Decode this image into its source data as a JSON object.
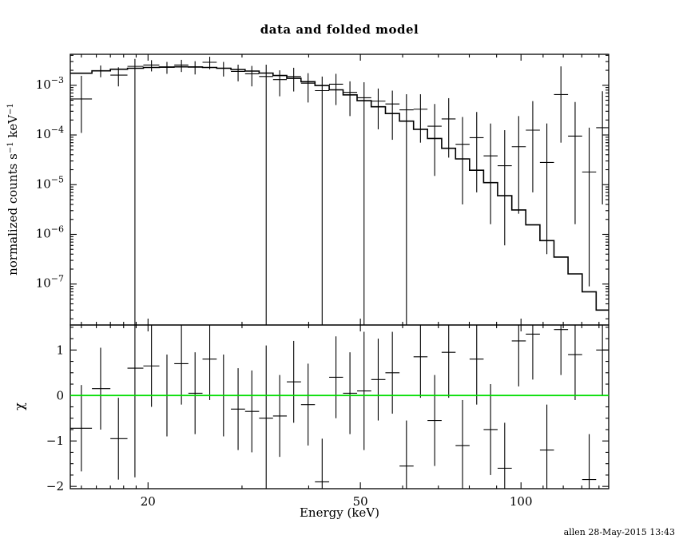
{
  "title": "data and folded model",
  "xlabel": "Energy (keV)",
  "timestamp": "allen 28-May-2015 13:43",
  "colors": {
    "background": "#ffffff",
    "ink": "#000000",
    "zero_line": "#00dd00"
  },
  "chart_data": [
    {
      "type": "scatter",
      "panel": "spectrum",
      "title": "data and folded model",
      "xlabel": "Energy (keV)",
      "ylabel_parts": {
        "prefix": "normalized counts s",
        "sup1": "−1",
        "mid": " keV",
        "sup2": "−1"
      },
      "xscale": "log",
      "yscale": "log",
      "xlim": [
        14.3,
        146
      ],
      "ylim": [
        1.5e-08,
        0.0042
      ],
      "x_major_ticks": [
        20,
        50,
        100
      ],
      "x_minor_ticks": [
        15,
        16,
        17,
        18,
        19,
        30,
        40,
        60,
        70,
        80,
        90,
        110,
        120,
        130,
        140
      ],
      "y_major_exponents": [
        -3,
        -4,
        -5,
        -6,
        -7
      ],
      "bin_edges": [
        14.3,
        15.7,
        17.0,
        18.3,
        19.6,
        21.0,
        22.4,
        23.8,
        25.3,
        26.9,
        28.6,
        30.4,
        32.3,
        34.3,
        36.4,
        38.7,
        41.1,
        43.7,
        46.4,
        49.3,
        52.4,
        55.7,
        59.2,
        62.9,
        66.8,
        71.0,
        75.4,
        80.1,
        85.1,
        90.4,
        96.1,
        102.1,
        108.5,
        115.3,
        122.5,
        130.2,
        138.3,
        146.0
      ],
      "model_values": [
        0.00175,
        0.00195,
        0.0021,
        0.0022,
        0.00228,
        0.00233,
        0.00235,
        0.00233,
        0.00228,
        0.0022,
        0.00208,
        0.00193,
        0.00176,
        0.00157,
        0.00138,
        0.00118,
        0.00099,
        0.00081,
        0.00064,
        0.00049,
        0.00037,
        0.00027,
        0.00019,
        0.00013,
        8.5e-05,
        5.4e-05,
        3.3e-05,
        1.95e-05,
        1.1e-05,
        6e-06,
        3.1e-06,
        1.55e-06,
        7.5e-07,
        3.5e-07,
        1.6e-07,
        7e-08,
        3e-08
      ],
      "points": [
        {
          "x": 15.0,
          "xlo": 14.3,
          "xhi": 15.7,
          "y": 0.00053,
          "ylo": 0.00011,
          "yhi": 0.00155
        },
        {
          "x": 16.3,
          "xlo": 15.7,
          "xhi": 17.0,
          "y": 0.00195,
          "ylo": 0.00145,
          "yhi": 0.0025
        },
        {
          "x": 17.6,
          "xlo": 17.0,
          "xhi": 18.3,
          "y": 0.0016,
          "ylo": 0.00095,
          "yhi": 0.0023
        },
        {
          "x": 18.9,
          "xlo": 18.3,
          "xhi": 19.6,
          "y": 0.0024,
          "ylo": 1e-09,
          "yhi": 0.0034
        },
        {
          "x": 20.3,
          "xlo": 19.6,
          "xhi": 21.0,
          "y": 0.00255,
          "ylo": 0.0019,
          "yhi": 0.0032
        },
        {
          "x": 21.7,
          "xlo": 21.0,
          "xhi": 22.4,
          "y": 0.0023,
          "ylo": 0.0017,
          "yhi": 0.00295
        },
        {
          "x": 23.1,
          "xlo": 22.4,
          "xhi": 23.8,
          "y": 0.00255,
          "ylo": 0.00185,
          "yhi": 0.00325
        },
        {
          "x": 24.5,
          "xlo": 23.8,
          "xhi": 25.3,
          "y": 0.00235,
          "ylo": 0.00165,
          "yhi": 0.00305
        },
        {
          "x": 26.1,
          "xlo": 25.3,
          "xhi": 26.9,
          "y": 0.0029,
          "ylo": 0.0021,
          "yhi": 0.00375
        },
        {
          "x": 27.7,
          "xlo": 26.9,
          "xhi": 28.6,
          "y": 0.0022,
          "ylo": 0.0015,
          "yhi": 0.00295
        },
        {
          "x": 29.5,
          "xlo": 28.6,
          "xhi": 30.4,
          "y": 0.0019,
          "ylo": 0.0012,
          "yhi": 0.0026
        },
        {
          "x": 31.3,
          "xlo": 30.4,
          "xhi": 32.3,
          "y": 0.0017,
          "ylo": 0.00095,
          "yhi": 0.00245
        },
        {
          "x": 33.3,
          "xlo": 32.3,
          "xhi": 34.3,
          "y": 0.0015,
          "ylo": 1e-09,
          "yhi": 0.0026
        },
        {
          "x": 35.3,
          "xlo": 34.3,
          "xhi": 36.4,
          "y": 0.0013,
          "ylo": 0.0006,
          "yhi": 0.002
        },
        {
          "x": 37.5,
          "xlo": 36.4,
          "xhi": 38.7,
          "y": 0.0015,
          "ylo": 0.00075,
          "yhi": 0.00225
        },
        {
          "x": 39.9,
          "xlo": 38.7,
          "xhi": 41.1,
          "y": 0.0011,
          "ylo": 0.00045,
          "yhi": 0.00175
        },
        {
          "x": 42.4,
          "xlo": 41.1,
          "xhi": 43.7,
          "y": 0.00078,
          "ylo": 1e-09,
          "yhi": 0.0015
        },
        {
          "x": 45.0,
          "xlo": 43.7,
          "xhi": 46.4,
          "y": 0.00105,
          "ylo": 0.0004,
          "yhi": 0.0017
        },
        {
          "x": 47.8,
          "xlo": 46.4,
          "xhi": 49.3,
          "y": 0.00072,
          "ylo": 0.00024,
          "yhi": 0.0012
        },
        {
          "x": 50.8,
          "xlo": 49.3,
          "xhi": 52.4,
          "y": 0.00056,
          "ylo": 1e-09,
          "yhi": 0.00115
        },
        {
          "x": 54.0,
          "xlo": 52.4,
          "xhi": 55.7,
          "y": 0.00048,
          "ylo": 0.00013,
          "yhi": 0.00086
        },
        {
          "x": 57.4,
          "xlo": 55.7,
          "xhi": 59.2,
          "y": 0.00042,
          "ylo": 8e-05,
          "yhi": 0.00078
        },
        {
          "x": 61.0,
          "xlo": 59.2,
          "xhi": 62.9,
          "y": 0.00032,
          "ylo": 1e-09,
          "yhi": 0.00066
        },
        {
          "x": 64.8,
          "xlo": 62.9,
          "xhi": 66.8,
          "y": 0.00033,
          "ylo": 7e-05,
          "yhi": 0.00066
        },
        {
          "x": 68.9,
          "xlo": 66.8,
          "xhi": 71.0,
          "y": 0.00015,
          "ylo": 1.5e-05,
          "yhi": 0.00042
        },
        {
          "x": 73.2,
          "xlo": 71.0,
          "xhi": 75.4,
          "y": 0.00021,
          "ylo": 3.5e-05,
          "yhi": 0.00055
        },
        {
          "x": 77.7,
          "xlo": 75.4,
          "xhi": 80.1,
          "y": 6.5e-05,
          "ylo": 4e-06,
          "yhi": 0.00023
        },
        {
          "x": 82.6,
          "xlo": 80.1,
          "xhi": 85.1,
          "y": 8.8e-05,
          "ylo": 7e-06,
          "yhi": 0.00029
        },
        {
          "x": 87.7,
          "xlo": 85.1,
          "xhi": 90.4,
          "y": 3.8e-05,
          "ylo": 1.6e-06,
          "yhi": 0.00017
        },
        {
          "x": 93.2,
          "xlo": 90.4,
          "xhi": 96.1,
          "y": 2.4e-05,
          "ylo": 6e-07,
          "yhi": 0.000125
        },
        {
          "x": 99.0,
          "xlo": 96.1,
          "xhi": 102.1,
          "y": 5.8e-05,
          "ylo": 2.6e-06,
          "yhi": 0.00024
        },
        {
          "x": 105.2,
          "xlo": 102.1,
          "xhi": 108.5,
          "y": 0.000125,
          "ylo": 7e-06,
          "yhi": 0.00048
        },
        {
          "x": 111.8,
          "xlo": 108.5,
          "xhi": 115.3,
          "y": 2.8e-05,
          "ylo": 4e-07,
          "yhi": 0.00017
        },
        {
          "x": 118.8,
          "xlo": 115.3,
          "xhi": 122.5,
          "y": 0.00065,
          "ylo": 7e-05,
          "yhi": 0.0024
        },
        {
          "x": 126.3,
          "xlo": 122.5,
          "xhi": 130.2,
          "y": 9.5e-05,
          "ylo": 1.6e-06,
          "yhi": 0.00046
        },
        {
          "x": 134.2,
          "xlo": 130.2,
          "xhi": 138.3,
          "y": 1.8e-05,
          "ylo": 9e-08,
          "yhi": 0.00014
        },
        {
          "x": 142.1,
          "xlo": 138.3,
          "xhi": 146.0,
          "y": 0.00014,
          "ylo": 4e-06,
          "yhi": 0.00076
        }
      ]
    },
    {
      "type": "scatter",
      "panel": "residuals",
      "ylabel": "χ",
      "xlim": [
        14.3,
        146
      ],
      "ylim": [
        -2.05,
        1.55
      ],
      "y_ticks": [
        -2,
        -1,
        0,
        1
      ],
      "zero_line": {
        "y": 0,
        "color": "#00dd00"
      },
      "points": [
        {
          "x": 15.0,
          "xlo": 14.3,
          "xhi": 15.7,
          "y": -0.72,
          "err": 0.95
        },
        {
          "x": 16.3,
          "xlo": 15.7,
          "xhi": 17.0,
          "y": 0.15,
          "err": 0.9
        },
        {
          "x": 17.6,
          "xlo": 17.0,
          "xhi": 18.3,
          "y": -0.95,
          "err": 0.9
        },
        {
          "x": 18.9,
          "xlo": 18.3,
          "xhi": 19.6,
          "y": 0.6,
          "err": 2.4
        },
        {
          "x": 20.3,
          "xlo": 19.6,
          "xhi": 21.0,
          "y": 0.65,
          "err": 0.9
        },
        {
          "x": 21.7,
          "xlo": 21.0,
          "xhi": 22.4,
          "y": 0.0,
          "err": 0.9
        },
        {
          "x": 23.1,
          "xlo": 22.4,
          "xhi": 23.8,
          "y": 0.7,
          "err": 0.9
        },
        {
          "x": 24.5,
          "xlo": 23.8,
          "xhi": 25.3,
          "y": 0.05,
          "err": 0.9
        },
        {
          "x": 26.1,
          "xlo": 25.3,
          "xhi": 26.9,
          "y": 0.8,
          "err": 0.9
        },
        {
          "x": 27.7,
          "xlo": 26.9,
          "xhi": 28.6,
          "y": 0.0,
          "err": 0.9
        },
        {
          "x": 29.5,
          "xlo": 28.6,
          "xhi": 30.4,
          "y": -0.3,
          "err": 0.9
        },
        {
          "x": 31.3,
          "xlo": 30.4,
          "xhi": 32.3,
          "y": -0.35,
          "err": 0.9
        },
        {
          "x": 33.3,
          "xlo": 32.3,
          "xhi": 34.3,
          "y": -0.5,
          "err": 1.6
        },
        {
          "x": 35.3,
          "xlo": 34.3,
          "xhi": 36.4,
          "y": -0.45,
          "err": 0.9
        },
        {
          "x": 37.5,
          "xlo": 36.4,
          "xhi": 38.7,
          "y": 0.3,
          "err": 0.9
        },
        {
          "x": 39.9,
          "xlo": 38.7,
          "xhi": 41.1,
          "y": -0.2,
          "err": 0.9
        },
        {
          "x": 42.4,
          "xlo": 41.1,
          "xhi": 43.7,
          "y": -1.9,
          "err": 0.95
        },
        {
          "x": 45.0,
          "xlo": 43.7,
          "xhi": 46.4,
          "y": 0.4,
          "err": 0.9
        },
        {
          "x": 47.8,
          "xlo": 46.4,
          "xhi": 49.3,
          "y": 0.05,
          "err": 0.9
        },
        {
          "x": 50.8,
          "xlo": 49.3,
          "xhi": 52.4,
          "y": 0.1,
          "err": 1.3
        },
        {
          "x": 54.0,
          "xlo": 52.4,
          "xhi": 55.7,
          "y": 0.35,
          "err": 0.9
        },
        {
          "x": 57.4,
          "xlo": 55.7,
          "xhi": 59.2,
          "y": 0.5,
          "err": 0.9
        },
        {
          "x": 61.0,
          "xlo": 59.2,
          "xhi": 62.9,
          "y": -1.55,
          "err": 1.0
        },
        {
          "x": 64.8,
          "xlo": 62.9,
          "xhi": 66.8,
          "y": 0.85,
          "err": 0.9
        },
        {
          "x": 68.9,
          "xlo": 66.8,
          "xhi": 71.0,
          "y": -0.55,
          "err": 1.0
        },
        {
          "x": 73.2,
          "xlo": 71.0,
          "xhi": 75.4,
          "y": 0.95,
          "err": 1.0
        },
        {
          "x": 77.7,
          "xlo": 75.4,
          "xhi": 80.1,
          "y": -1.1,
          "err": 1.0
        },
        {
          "x": 82.6,
          "xlo": 80.1,
          "xhi": 85.1,
          "y": 0.8,
          "err": 1.0
        },
        {
          "x": 87.7,
          "xlo": 85.1,
          "xhi": 90.4,
          "y": -0.75,
          "err": 1.0
        },
        {
          "x": 93.2,
          "xlo": 90.4,
          "xhi": 96.1,
          "y": -1.6,
          "err": 1.0
        },
        {
          "x": 99.0,
          "xlo": 96.1,
          "xhi": 102.1,
          "y": 1.2,
          "err": 1.0
        },
        {
          "x": 105.2,
          "xlo": 102.1,
          "xhi": 108.5,
          "y": 1.35,
          "err": 1.0
        },
        {
          "x": 111.8,
          "xlo": 108.5,
          "xhi": 115.3,
          "y": -1.2,
          "err": 1.0
        },
        {
          "x": 118.8,
          "xlo": 115.3,
          "xhi": 122.5,
          "y": 1.45,
          "err": 1.0
        },
        {
          "x": 126.3,
          "xlo": 122.5,
          "xhi": 130.2,
          "y": 0.9,
          "err": 1.0
        },
        {
          "x": 134.2,
          "xlo": 130.2,
          "xhi": 138.3,
          "y": -1.85,
          "err": 1.0
        },
        {
          "x": 142.1,
          "xlo": 138.3,
          "xhi": 146.0,
          "y": 1.0,
          "err": 1.0
        }
      ]
    }
  ]
}
